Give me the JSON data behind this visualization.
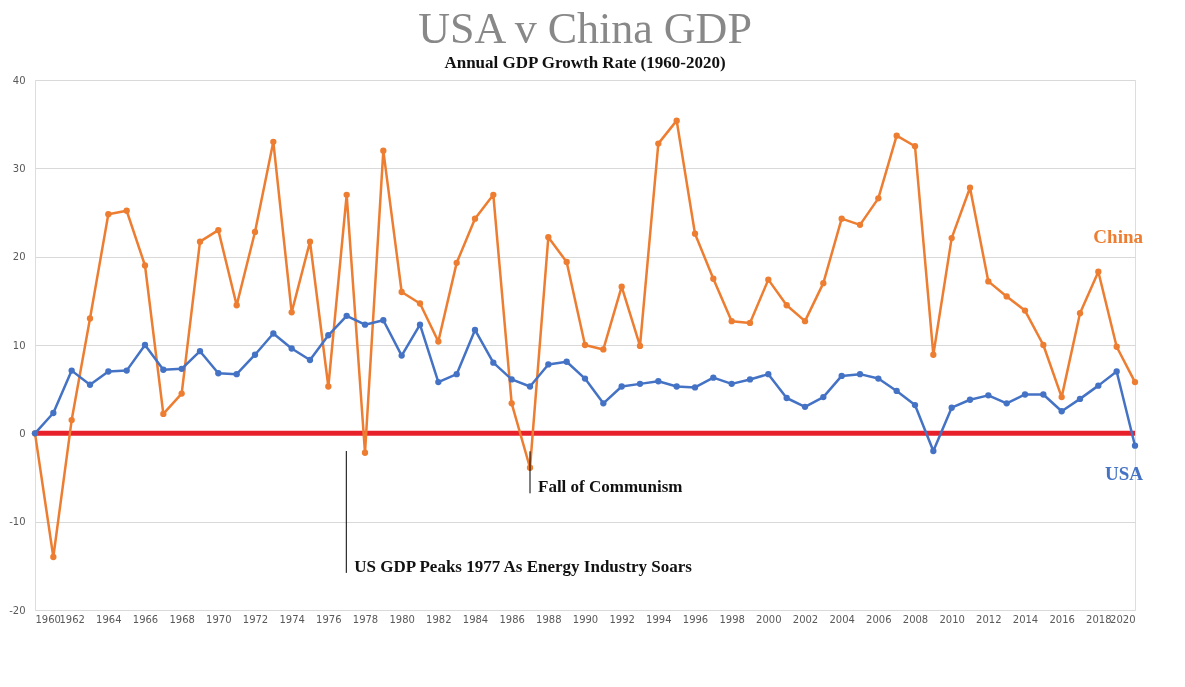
{
  "chart_data": {
    "type": "line",
    "title": "USA v China GDP",
    "subtitle": "Annual GDP Growth Rate (1960-2020)",
    "x": [
      1960,
      1961,
      1962,
      1963,
      1964,
      1965,
      1966,
      1967,
      1968,
      1969,
      1970,
      1971,
      1972,
      1973,
      1974,
      1975,
      1976,
      1977,
      1978,
      1979,
      1980,
      1981,
      1982,
      1983,
      1984,
      1985,
      1986,
      1987,
      1988,
      1989,
      1990,
      1991,
      1992,
      1993,
      1994,
      1995,
      1996,
      1997,
      1998,
      1999,
      2000,
      2001,
      2002,
      2003,
      2004,
      2005,
      2006,
      2007,
      2008,
      2009,
      2010,
      2011,
      2012,
      2013,
      2014,
      2015,
      2016,
      2017,
      2018,
      2019,
      2020
    ],
    "series": [
      {
        "name": "China",
        "color": "#ed7d31",
        "values": [
          0,
          -14,
          1.5,
          13,
          24.8,
          25.2,
          19,
          2.2,
          4.5,
          21.7,
          23,
          14.5,
          22.8,
          33,
          13.7,
          21.7,
          5.3,
          27,
          -2.2,
          32,
          16,
          14.7,
          10.4,
          19.3,
          24.3,
          27,
          3.4,
          -3.9,
          22.2,
          19.4,
          10,
          9.5,
          16.6,
          9.9,
          32.8,
          35.4,
          22.6,
          17.5,
          12.7,
          12.5,
          17.4,
          14.5,
          12.7,
          17,
          24.3,
          23.6,
          26.6,
          33.7,
          32.5,
          8.9,
          22.1,
          27.8,
          17.2,
          15.5,
          13.9,
          10,
          4.1,
          13.6,
          18.3,
          9.8,
          5.8
        ]
      },
      {
        "name": "USA",
        "color": "#4472c4",
        "values": [
          0,
          2.3,
          7.1,
          5.5,
          7.0,
          7.1,
          10.0,
          7.2,
          7.3,
          9.3,
          6.8,
          6.7,
          8.9,
          11.3,
          9.6,
          8.3,
          11.1,
          13.3,
          12.3,
          12.8,
          8.8,
          12.3,
          5.8,
          6.7,
          11.7,
          8.0,
          6.1,
          5.3,
          7.8,
          8.1,
          6.2,
          3.4,
          5.3,
          5.6,
          5.9,
          5.3,
          5.2,
          6.3,
          5.6,
          6.1,
          6.7,
          4.0,
          3.0,
          4.1,
          6.5,
          6.7,
          6.2,
          4.8,
          3.2,
          -2.0,
          2.9,
          3.8,
          4.3,
          3.4,
          4.4,
          4.4,
          2.5,
          3.9,
          5.4,
          7.0,
          -1.4
        ]
      }
    ],
    "xlim": [
      1960,
      2020
    ],
    "xticks": [
      1960,
      1962,
      1964,
      1966,
      1968,
      1970,
      1972,
      1974,
      1976,
      1978,
      1980,
      1982,
      1984,
      1986,
      1988,
      1990,
      1992,
      1994,
      1996,
      1998,
      2000,
      2002,
      2004,
      2006,
      2008,
      2010,
      2012,
      2014,
      2016,
      2018,
      2020
    ],
    "ylim": [
      -20,
      40
    ],
    "yticks": [
      -20,
      -10,
      0,
      10,
      20,
      30,
      40
    ],
    "grid": "y",
    "legend": false,
    "marker": "circle",
    "line_style": "solid",
    "ref_lines": [
      {
        "axis": "y",
        "value": 0,
        "label": null,
        "color": "#e8202a"
      }
    ],
    "annotations": [
      "US GDP Peaks 1977 As Energy Industry Soars",
      {
        "text": "Fall of Communism",
        "x": 1987,
        "y": 0
      }
    ]
  }
}
